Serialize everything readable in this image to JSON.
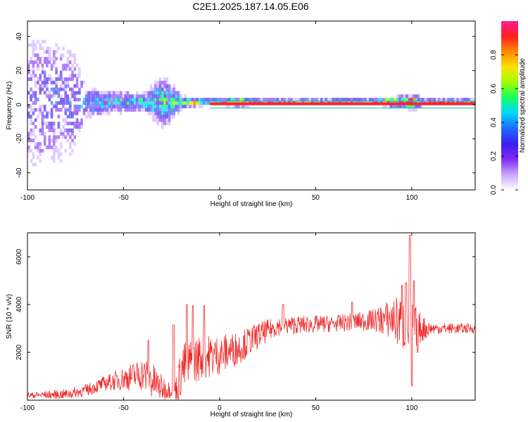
{
  "figure_title": "C2E1.2025.187.14.05.E06",
  "colors": {
    "signal_line": "#ff1f3a",
    "snr_trace": "#ee2c2c",
    "band_edge": "#00c8a0",
    "colormap": [
      "#ffffff",
      "#c9a6ff",
      "#7d2cf6",
      "#3c1df0",
      "#1e6bff",
      "#00d7ff",
      "#16ff62",
      "#9cff00",
      "#ffe100",
      "#ff8a00",
      "#ff2020",
      "#ff1d8f"
    ]
  },
  "chart_data": [
    {
      "type": "heatmap",
      "title": "C2E1.2025.187.14.05.E06",
      "xlabel": "Height of straight line (km)",
      "ylabel": "Frequency (Hz)",
      "xlim": [
        -100,
        133
      ],
      "ylim": [
        -50,
        49
      ],
      "x_ticks": [
        -100,
        -50,
        0,
        50,
        100
      ],
      "y_ticks": [
        -40,
        -20,
        0,
        20,
        40
      ],
      "grid": false,
      "colorbar": {
        "label": "Normalized spectral amplitude",
        "range": [
          0,
          1
        ],
        "ticks": [
          0.0,
          0.2,
          0.4,
          0.6,
          0.8
        ]
      },
      "signal": {
        "frequency_hz": 0.5,
        "solid_from_km": -5,
        "solid_to_km": 133,
        "band_edges_hz": [
          -2,
          2
        ]
      },
      "energy_profile": [
        {
          "x": -100,
          "spread_hz": 48,
          "amplitude": 0.25
        },
        {
          "x": -90,
          "spread_hz": 48,
          "amplitude": 0.3
        },
        {
          "x": -80,
          "spread_hz": 40,
          "amplitude": 0.3
        },
        {
          "x": -75,
          "spread_hz": 30,
          "amplitude": 0.35
        },
        {
          "x": -70,
          "spread_hz": 10,
          "amplitude": 0.45
        },
        {
          "x": -60,
          "spread_hz": 8,
          "amplitude": 0.45
        },
        {
          "x": -50,
          "spread_hz": 7,
          "amplitude": 0.5
        },
        {
          "x": -40,
          "spread_hz": 6,
          "amplitude": 0.55
        },
        {
          "x": -30,
          "spread_hz": 18,
          "amplitude": 0.5
        },
        {
          "x": -20,
          "spread_hz": 4,
          "amplitude": 0.6
        },
        {
          "x": -10,
          "spread_hz": 3,
          "amplitude": 0.75
        },
        {
          "x": -5,
          "spread_hz": 2,
          "amplitude": 0.9
        },
        {
          "x": 10,
          "spread_hz": 3,
          "amplitude": 0.95
        },
        {
          "x": 20,
          "spread_hz": 2,
          "amplitude": 1.0
        },
        {
          "x": 80,
          "spread_hz": 2,
          "amplitude": 1.0
        },
        {
          "x": 95,
          "spread_hz": 4,
          "amplitude": 0.95
        },
        {
          "x": 101,
          "spread_hz": 5,
          "amplitude": 0.9
        },
        {
          "x": 105,
          "spread_hz": 2,
          "amplitude": 1.0
        },
        {
          "x": 133,
          "spread_hz": 2,
          "amplitude": 1.0
        }
      ]
    },
    {
      "type": "line",
      "xlabel": "Height of straight line (km)",
      "ylabel": "SNR (10 * v/v)",
      "xlim": [
        -100,
        133
      ],
      "ylim": [
        0,
        7000
      ],
      "x_ticks": [
        -100,
        -50,
        0,
        50,
        100
      ],
      "y_ticks": [
        2000,
        4000,
        6000
      ],
      "grid": false,
      "series": [
        {
          "color": "#ee2c2c",
          "baseline": [
            {
              "x": -100,
              "y": 200
            },
            {
              "x": -80,
              "y": 250
            },
            {
              "x": -70,
              "y": 400
            },
            {
              "x": -60,
              "y": 700
            },
            {
              "x": -50,
              "y": 900
            },
            {
              "x": -40,
              "y": 1100
            },
            {
              "x": -35,
              "y": 800
            },
            {
              "x": -30,
              "y": 500
            },
            {
              "x": -22,
              "y": 400
            },
            {
              "x": -20,
              "y": 1300
            },
            {
              "x": -10,
              "y": 1800
            },
            {
              "x": 0,
              "y": 1900
            },
            {
              "x": 10,
              "y": 2200
            },
            {
              "x": 20,
              "y": 2700
            },
            {
              "x": 30,
              "y": 3100
            },
            {
              "x": 40,
              "y": 3150
            },
            {
              "x": 60,
              "y": 3200
            },
            {
              "x": 80,
              "y": 3350
            },
            {
              "x": 90,
              "y": 3400
            },
            {
              "x": 95,
              "y": 3200
            },
            {
              "x": 100,
              "y": 3000
            },
            {
              "x": 105,
              "y": 3000
            },
            {
              "x": 120,
              "y": 3000
            },
            {
              "x": 133,
              "y": 3000
            }
          ],
          "noise_amplitude": [
            {
              "x": -100,
              "y": 120
            },
            {
              "x": -60,
              "y": 300
            },
            {
              "x": -45,
              "y": 600
            },
            {
              "x": -35,
              "y": 800
            },
            {
              "x": -25,
              "y": 300
            },
            {
              "x": -20,
              "y": 1100
            },
            {
              "x": -5,
              "y": 900
            },
            {
              "x": 10,
              "y": 700
            },
            {
              "x": 30,
              "y": 400
            },
            {
              "x": 60,
              "y": 350
            },
            {
              "x": 80,
              "y": 450
            },
            {
              "x": 90,
              "y": 900
            },
            {
              "x": 97,
              "y": 1400
            },
            {
              "x": 100,
              "y": 1200
            },
            {
              "x": 104,
              "y": 700
            },
            {
              "x": 110,
              "y": 250
            },
            {
              "x": 133,
              "y": 200
            }
          ],
          "spikes": [
            {
              "x": -37,
              "y": 2500
            },
            {
              "x": -24,
              "y": 3150
            },
            {
              "x": -17,
              "y": 4000
            },
            {
              "x": -14,
              "y": 3950
            },
            {
              "x": -8,
              "y": 3950
            },
            {
              "x": 33,
              "y": 4000
            },
            {
              "x": 69,
              "y": 4100
            },
            {
              "x": 95,
              "y": 4800
            },
            {
              "x": 97,
              "y": 4900
            },
            {
              "x": 99,
              "y": 6900
            },
            {
              "x": 100,
              "y": 600
            },
            {
              "x": 101,
              "y": 5000
            },
            {
              "x": 103,
              "y": 2000
            }
          ]
        }
      ]
    }
  ]
}
